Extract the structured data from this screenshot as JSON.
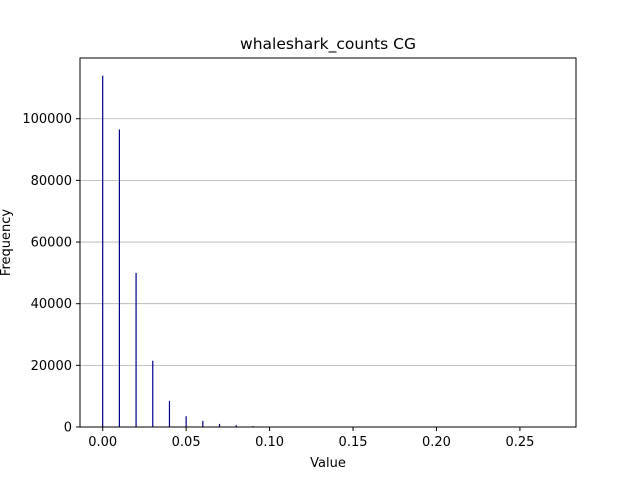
{
  "chart_data": {
    "type": "bar",
    "title": "whaleshark_counts CG",
    "xlabel": "Value",
    "ylabel": "Frequency",
    "xlim": [
      -0.0136,
      0.2836
    ],
    "ylim": [
      0,
      119700
    ],
    "xticks": [
      0.0,
      0.05,
      0.1,
      0.15,
      0.2,
      0.25
    ],
    "xtick_labels": [
      "0.00",
      "0.05",
      "0.10",
      "0.15",
      "0.20",
      "0.25"
    ],
    "yticks": [
      0,
      20000,
      40000,
      60000,
      80000,
      100000
    ],
    "ytick_labels": [
      "0",
      "20000",
      "40000",
      "60000",
      "80000",
      "100000"
    ],
    "grid": "y",
    "bar_color": "#00008b",
    "grid_color": "#b0b0b0",
    "bars": [
      {
        "x": 0.0,
        "value": 114000
      },
      {
        "x": 0.01,
        "value": 96500
      },
      {
        "x": 0.02,
        "value": 50000
      },
      {
        "x": 0.03,
        "value": 21500
      },
      {
        "x": 0.04,
        "value": 8500
      },
      {
        "x": 0.05,
        "value": 3500
      },
      {
        "x": 0.06,
        "value": 2000
      },
      {
        "x": 0.07,
        "value": 1000
      },
      {
        "x": 0.08,
        "value": 600
      },
      {
        "x": 0.09,
        "value": 300
      },
      {
        "x": 0.1,
        "value": 150
      },
      {
        "x": 0.11,
        "value": 80
      },
      {
        "x": 0.12,
        "value": 50
      },
      {
        "x": 0.13,
        "value": 30
      },
      {
        "x": 0.14,
        "value": 20
      },
      {
        "x": 0.15,
        "value": 10
      },
      {
        "x": 0.16,
        "value": 8
      },
      {
        "x": 0.17,
        "value": 5
      },
      {
        "x": 0.18,
        "value": 4
      },
      {
        "x": 0.19,
        "value": 3
      },
      {
        "x": 0.2,
        "value": 2
      },
      {
        "x": 0.21,
        "value": 2
      },
      {
        "x": 0.22,
        "value": 1
      },
      {
        "x": 0.23,
        "value": 1
      },
      {
        "x": 0.24,
        "value": 1
      },
      {
        "x": 0.25,
        "value": 1
      },
      {
        "x": 0.26,
        "value": 1
      },
      {
        "x": 0.27,
        "value": 1
      }
    ]
  }
}
